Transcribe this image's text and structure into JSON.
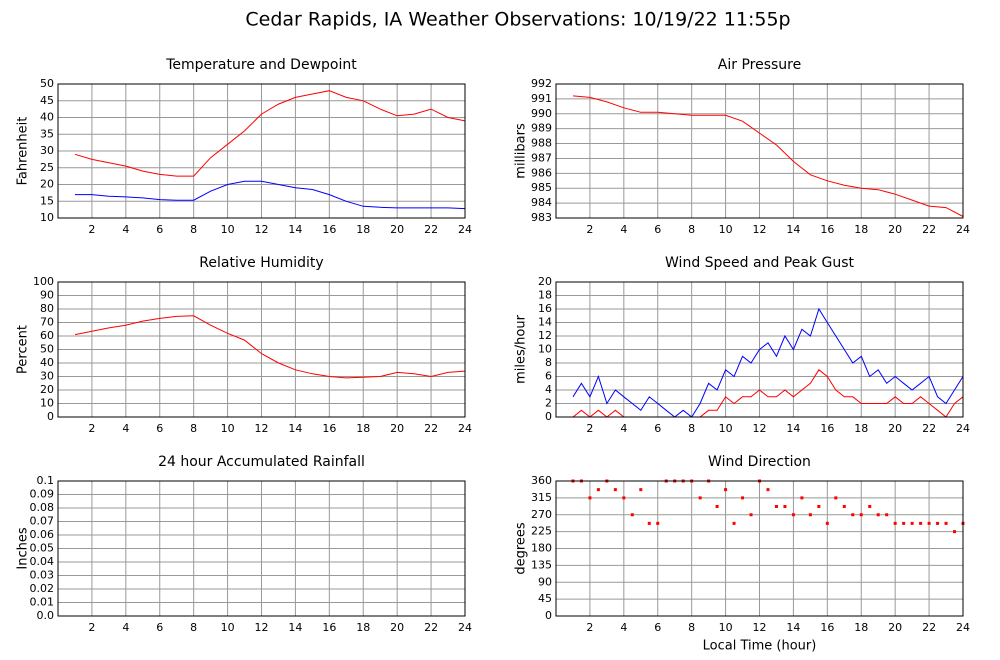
{
  "title": "Cedar Rapids, IA Weather Observations: 10/19/22 11:55p",
  "chart_data": [
    {
      "type": "line",
      "title": "Temperature and Dewpoint",
      "ylabel": "Fahrenheit",
      "x": [
        1,
        2,
        3,
        4,
        5,
        6,
        7,
        8,
        9,
        10,
        11,
        12,
        13,
        14,
        15,
        16,
        17,
        18,
        19,
        20,
        21,
        22,
        23,
        24
      ],
      "series": [
        {
          "color": "#ff0000",
          "values": [
            29,
            27.5,
            26.5,
            25.5,
            24,
            23,
            22.5,
            22.5,
            28,
            32,
            36,
            41,
            44,
            46,
            47,
            48,
            46,
            45,
            42.5,
            40.5,
            41,
            42.5,
            40,
            39
          ]
        },
        {
          "color": "#0000ff",
          "values": [
            17,
            17,
            16.5,
            16.3,
            16,
            15.5,
            15.3,
            15.3,
            18,
            20,
            21,
            21,
            20,
            19,
            18.5,
            17,
            15,
            13.5,
            13.2,
            13,
            13,
            13,
            13,
            12.8
          ]
        }
      ],
      "xlim": [
        0,
        24
      ],
      "xticks": [
        2,
        4,
        6,
        8,
        10,
        12,
        14,
        16,
        18,
        20,
        22,
        24
      ],
      "ylim": [
        10,
        50
      ],
      "yticks": [
        10,
        15,
        20,
        25,
        30,
        35,
        40,
        45,
        50
      ],
      "grid": true
    },
    {
      "type": "line",
      "title": "Air Pressure",
      "ylabel": "millibars",
      "x": [
        1,
        2,
        3,
        4,
        5,
        6,
        7,
        8,
        9,
        10,
        11,
        12,
        13,
        14,
        15,
        16,
        17,
        18,
        19,
        20,
        21,
        22,
        23,
        24
      ],
      "series": [
        {
          "color": "#ff0000",
          "values": [
            991.2,
            991.1,
            990.8,
            990.4,
            990.1,
            990.1,
            990,
            989.9,
            989.9,
            989.9,
            989.5,
            988.7,
            987.9,
            986.8,
            985.9,
            985.5,
            985.2,
            985,
            984.9,
            984.6,
            984.2,
            983.8,
            983.7,
            983.1
          ]
        }
      ],
      "xlim": [
        0,
        24
      ],
      "xticks": [
        2,
        4,
        6,
        8,
        10,
        12,
        14,
        16,
        18,
        20,
        22,
        24
      ],
      "ylim": [
        983,
        992
      ],
      "yticks": [
        983,
        984,
        985,
        986,
        987,
        988,
        989,
        990,
        991,
        992
      ],
      "grid": true
    },
    {
      "type": "line",
      "title": "Relative Humidity",
      "ylabel": "Percent",
      "x": [
        1,
        2,
        3,
        4,
        5,
        6,
        7,
        8,
        9,
        10,
        11,
        12,
        13,
        14,
        15,
        16,
        17,
        18,
        19,
        20,
        21,
        22,
        23,
        24
      ],
      "series": [
        {
          "color": "#ff0000",
          "values": [
            61,
            63.5,
            66,
            68,
            71,
            73,
            74.5,
            75,
            68,
            62,
            57,
            47,
            40,
            35,
            32,
            30,
            29,
            29.5,
            30,
            33,
            32,
            30,
            33,
            34
          ]
        }
      ],
      "xlim": [
        0,
        24
      ],
      "xticks": [
        2,
        4,
        6,
        8,
        10,
        12,
        14,
        16,
        18,
        20,
        22,
        24
      ],
      "ylim": [
        0,
        100
      ],
      "yticks": [
        0,
        10,
        20,
        30,
        40,
        50,
        60,
        70,
        80,
        90,
        100
      ],
      "grid": true
    },
    {
      "type": "line",
      "title": "Wind Speed and Peak Gust",
      "ylabel": "miles/hour",
      "x": [
        1,
        1.5,
        2,
        2.5,
        3,
        3.5,
        4,
        4.5,
        5,
        5.5,
        6,
        6.5,
        7,
        7.5,
        8,
        8.5,
        9,
        9.5,
        10,
        10.5,
        11,
        11.5,
        12,
        12.5,
        13,
        13.5,
        14,
        14.5,
        15,
        15.5,
        16,
        16.5,
        17,
        17.5,
        18,
        18.5,
        19,
        19.5,
        20,
        20.5,
        21,
        21.5,
        22,
        22.5,
        23,
        23.5,
        24
      ],
      "series": [
        {
          "color": "#0000ff",
          "values": [
            3,
            5,
            3,
            6,
            2,
            4,
            3,
            2,
            1,
            3,
            2,
            1,
            0,
            1,
            0,
            2,
            5,
            4,
            7,
            6,
            9,
            8,
            10,
            11,
            9,
            12,
            10,
            13,
            12,
            16,
            14,
            12,
            10,
            8,
            9,
            6,
            7,
            5,
            6,
            5,
            4,
            5,
            6,
            3,
            2,
            4,
            6
          ]
        },
        {
          "color": "#ff0000",
          "values": [
            0,
            1,
            0,
            1,
            0,
            1,
            0,
            0,
            0,
            0,
            0,
            0,
            0,
            0,
            0,
            0,
            1,
            1,
            3,
            2,
            3,
            3,
            4,
            3,
            3,
            4,
            3,
            4,
            5,
            7,
            6,
            4,
            3,
            3,
            2,
            2,
            2,
            2,
            3,
            2,
            2,
            3,
            2,
            1,
            0,
            2,
            3
          ]
        }
      ],
      "xlim": [
        0,
        24
      ],
      "xticks": [
        2,
        4,
        6,
        8,
        10,
        12,
        14,
        16,
        18,
        20,
        22,
        24
      ],
      "ylim": [
        0,
        20
      ],
      "yticks": [
        0,
        2,
        4,
        6,
        8,
        10,
        12,
        14,
        16,
        18,
        20
      ],
      "grid": true
    },
    {
      "type": "line",
      "title": "24 hour Accumulated Rainfall",
      "ylabel": "Inches",
      "x": [
        1,
        24
      ],
      "series": [
        {
          "color": "#ff0000",
          "values": [
            0,
            0
          ]
        }
      ],
      "xlim": [
        0,
        24
      ],
      "xticks": [
        2,
        4,
        6,
        8,
        10,
        12,
        14,
        16,
        18,
        20,
        22,
        24
      ],
      "ylim": [
        0,
        0.1
      ],
      "yticks": [
        {
          "value": 0,
          "label": "0.0"
        },
        0.01,
        0.02,
        0.03,
        0.04,
        0.05,
        0.06,
        0.07,
        0.08,
        0.09,
        0.1
      ],
      "grid": true
    },
    {
      "type": "scatter",
      "title": "Wind Direction",
      "ylabel": "degrees",
      "xlabel": "Local Time (hour)",
      "x": [
        1,
        1.5,
        2,
        2.5,
        3,
        3.5,
        4,
        4.5,
        5,
        5.5,
        6,
        6.5,
        7,
        7.5,
        8,
        8.5,
        9,
        9.5,
        10,
        10.5,
        11,
        11.5,
        12,
        12.5,
        13,
        13.5,
        14,
        14.5,
        15,
        15.5,
        16,
        16.5,
        17,
        17.5,
        18,
        18.5,
        19,
        19.5,
        20,
        20.5,
        21,
        21.5,
        22,
        22.5,
        23,
        23.5,
        24
      ],
      "series": [
        {
          "color": "#ff0000",
          "values": [
            360,
            360,
            315,
            337,
            360,
            337,
            315,
            270,
            337,
            247,
            247,
            360,
            360,
            360,
            360,
            315,
            360,
            292,
            337,
            247,
            315,
            270,
            360,
            337,
            292,
            292,
            270,
            315,
            270,
            292,
            247,
            315,
            292,
            270,
            270,
            292,
            270,
            270,
            247,
            247,
            247,
            247,
            247,
            247,
            247,
            225,
            247
          ]
        }
      ],
      "xlim": [
        0,
        24
      ],
      "xticks": [
        2,
        4,
        6,
        8,
        10,
        12,
        14,
        16,
        18,
        20,
        22,
        24
      ],
      "ylim": [
        0,
        360
      ],
      "yticks": [
        0,
        45,
        90,
        135,
        180,
        225,
        270,
        315,
        360
      ],
      "grid": true
    }
  ]
}
